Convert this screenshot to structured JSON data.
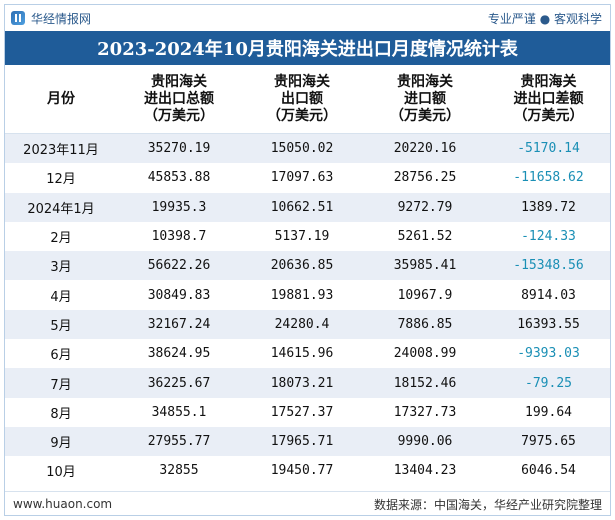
{
  "header": {
    "brand": "华经情报网",
    "tags": "专业严谨 ● 客观科学",
    "title": "2023-2024年10月贵阳海关进出口月度情况统计表"
  },
  "table": {
    "columns": [
      [
        "月份"
      ],
      [
        "贵阳海关",
        "进出口总额",
        "（万美元）"
      ],
      [
        "贵阳海关",
        "出口额",
        "（万美元）"
      ],
      [
        "贵阳海关",
        "进口额",
        "（万美元）"
      ],
      [
        "贵阳海关",
        "进出口差额",
        "（万美元）"
      ]
    ],
    "rows": [
      {
        "month": "2023年11月",
        "total": "35270.19",
        "export": "15050.02",
        "import": "20220.16",
        "balance": "-5170.14",
        "negative": true
      },
      {
        "month": "12月",
        "total": "45853.88",
        "export": "17097.63",
        "import": "28756.25",
        "balance": "-11658.62",
        "negative": true
      },
      {
        "month": "2024年1月",
        "total": "19935.3",
        "export": "10662.51",
        "import": "9272.79",
        "balance": "1389.72",
        "negative": false
      },
      {
        "month": "2月",
        "total": "10398.7",
        "export": "5137.19",
        "import": "5261.52",
        "balance": "-124.33",
        "negative": true
      },
      {
        "month": "3月",
        "total": "56622.26",
        "export": "20636.85",
        "import": "35985.41",
        "balance": "-15348.56",
        "negative": true
      },
      {
        "month": "4月",
        "total": "30849.83",
        "export": "19881.93",
        "import": "10967.9",
        "balance": "8914.03",
        "negative": false
      },
      {
        "month": "5月",
        "total": "32167.24",
        "export": "24280.4",
        "import": "7886.85",
        "balance": "16393.55",
        "negative": false
      },
      {
        "month": "6月",
        "total": "38624.95",
        "export": "14615.96",
        "import": "24008.99",
        "balance": "-9393.03",
        "negative": true
      },
      {
        "month": "7月",
        "total": "36225.67",
        "export": "18073.21",
        "import": "18152.46",
        "balance": "-79.25",
        "negative": true
      },
      {
        "month": "8月",
        "total": "34855.1",
        "export": "17527.37",
        "import": "17327.73",
        "balance": "199.64",
        "negative": false
      },
      {
        "month": "9月",
        "total": "27955.77",
        "export": "17965.71",
        "import": "9990.06",
        "balance": "7975.65",
        "negative": false
      },
      {
        "month": "10月",
        "total": "32855",
        "export": "19450.77",
        "import": "13404.23",
        "balance": "6046.54",
        "negative": false
      }
    ]
  },
  "footer": {
    "url": "www.huaon.com",
    "source": "数据来源：中国海关，华经产业研究院整理"
  },
  "watermark": "华经产业研究院",
  "colors": {
    "title_bg": "#1f5c99",
    "stripe": "#e9eef6",
    "negative": "#1a8fb5"
  }
}
